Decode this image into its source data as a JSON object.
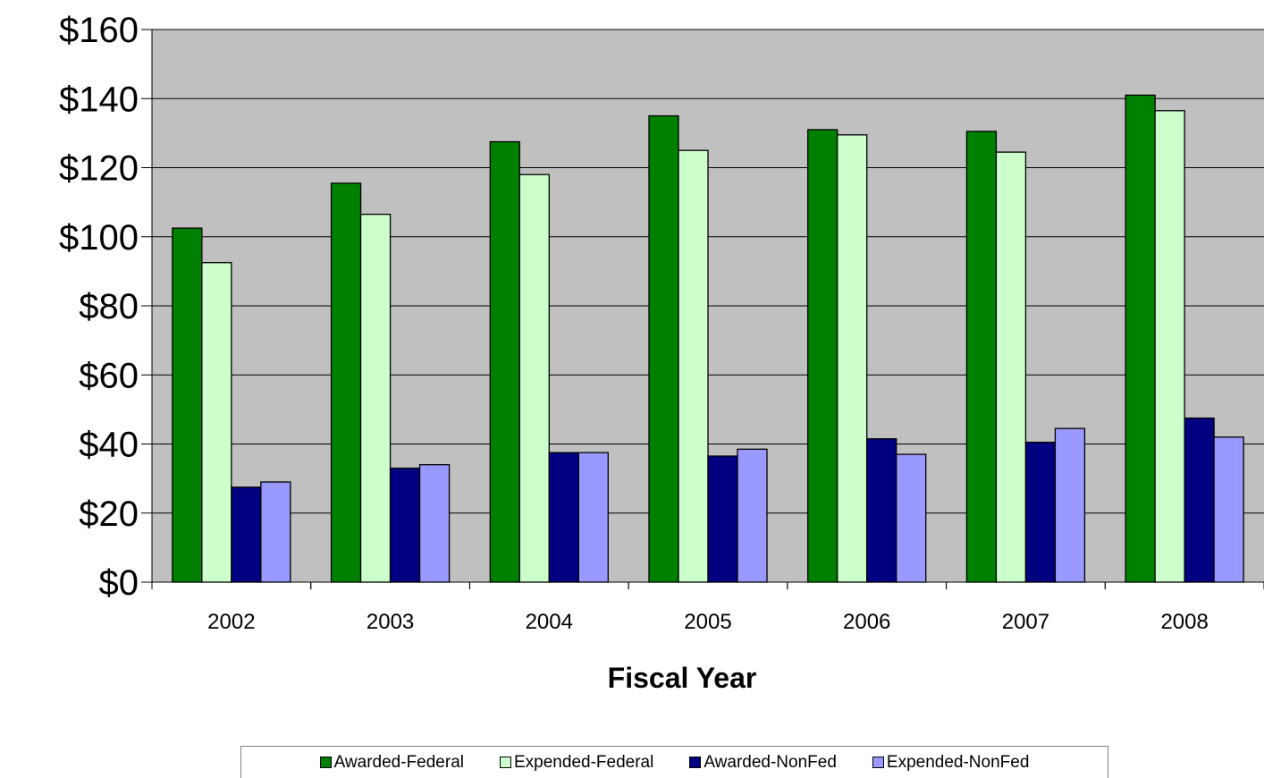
{
  "chart_data": {
    "type": "bar",
    "title": "",
    "xlabel": "Fiscal Year",
    "ylabel": "",
    "categories": [
      "2002",
      "2003",
      "2004",
      "2005",
      "2006",
      "2007",
      "2008"
    ],
    "ylim": [
      0,
      160
    ],
    "yticks": [
      0,
      20,
      40,
      60,
      80,
      100,
      120,
      140,
      160
    ],
    "ytick_labels": [
      "$0",
      "$20",
      "$40",
      "$60",
      "$80",
      "$100",
      "$120",
      "$140",
      "$160"
    ],
    "grid": true,
    "legend_position": "bottom",
    "plot_background": "#c0c0c0",
    "series": [
      {
        "name": "Awarded-Federal",
        "color": "#008000",
        "values": [
          102.5,
          115.5,
          127.5,
          135.0,
          131.0,
          130.5,
          141.0
        ]
      },
      {
        "name": "Expended-Federal",
        "color": "#ccffcc",
        "values": [
          92.5,
          106.5,
          118.0,
          125.0,
          129.5,
          124.5,
          136.5
        ]
      },
      {
        "name": "Awarded-NonFed",
        "color": "#000080",
        "values": [
          27.5,
          33.0,
          37.5,
          36.5,
          41.5,
          40.5,
          47.5
        ]
      },
      {
        "name": "Expended-NonFed",
        "color": "#9999ff",
        "values": [
          29.0,
          34.0,
          37.5,
          38.5,
          37.0,
          44.5,
          42.0
        ]
      }
    ]
  }
}
